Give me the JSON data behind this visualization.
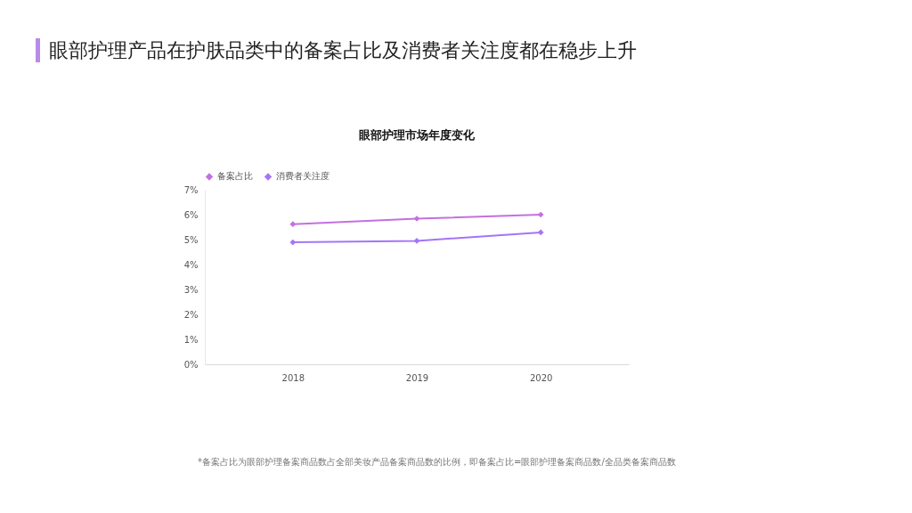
{
  "chart_data": {
    "type": "line",
    "title": "眼部护理产品在护肤品类中的备案占比及消费者关注度都在稳步上升",
    "subtitle": "眼部护理市场年度变化",
    "categories": [
      "2018",
      "2019",
      "2020"
    ],
    "series": [
      {
        "name": "备案占比",
        "color": "#c470e0",
        "values": [
          5.62,
          5.84,
          6.0
        ]
      },
      {
        "name": "消费者关注度",
        "color": "#a475f7",
        "values": [
          4.89,
          4.95,
          5.29
        ]
      }
    ],
    "ylim": [
      0,
      7
    ],
    "yticks": [
      {
        "value": 0,
        "label": "0%"
      },
      {
        "value": 1,
        "label": "1%"
      },
      {
        "value": 2,
        "label": "2%"
      },
      {
        "value": 3,
        "label": "3%"
      },
      {
        "value": 4,
        "label": "4%"
      },
      {
        "value": 5,
        "label": "5%"
      },
      {
        "value": 6,
        "label": "6%"
      },
      {
        "value": 7,
        "label": "7%"
      }
    ],
    "grid": false,
    "legend": "top",
    "marker": "diamond",
    "line_style": "solid",
    "annotations": [
      "*备案占比为眼部护理备案商品数占全部美妆产品备案商品数的比例，即备案占比=眼部护理备案商品数/全品类备案商品数"
    ]
  }
}
